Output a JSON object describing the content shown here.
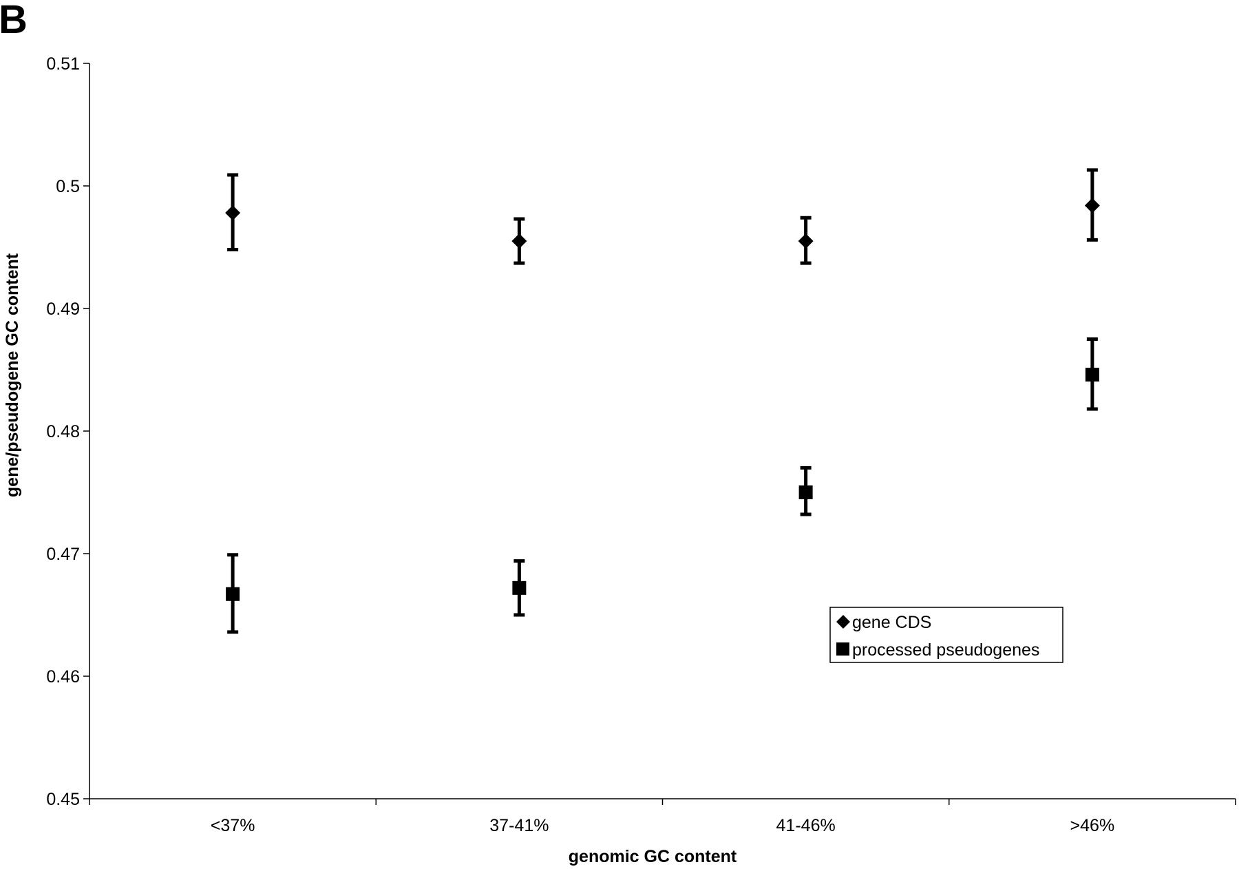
{
  "panel_label": "B",
  "chart_data": {
    "type": "scatter",
    "title": "",
    "xlabel": "genomic GC content",
    "ylabel": "gene/pseudogene GC content",
    "categories": [
      "<37%",
      "37-41%",
      "41-46%",
      ">46%"
    ],
    "ylim": [
      0.45,
      0.51
    ],
    "yticks": [
      "0.51",
      "0.5",
      "0.49",
      "0.48",
      "0.47",
      "0.46",
      "0.45"
    ],
    "ytick_values": [
      0.51,
      0.5,
      0.49,
      0.48,
      0.47,
      0.46,
      0.45
    ],
    "grid": false,
    "legend_position": "lower-right",
    "series": [
      {
        "name": "gene CDS",
        "marker": "diamond",
        "values": [
          0.4978,
          0.4955,
          0.4955,
          0.4984
        ],
        "error_low": [
          0.4948,
          0.4937,
          0.4937,
          0.4956
        ],
        "error_high": [
          0.5009,
          0.4973,
          0.4974,
          0.5013
        ]
      },
      {
        "name": "processed pseudogenes",
        "marker": "square",
        "values": [
          0.4667,
          0.4672,
          0.475,
          0.4846
        ],
        "error_low": [
          0.4636,
          0.465,
          0.4732,
          0.4818
        ],
        "error_high": [
          0.4699,
          0.4694,
          0.477,
          0.4875
        ]
      }
    ]
  }
}
